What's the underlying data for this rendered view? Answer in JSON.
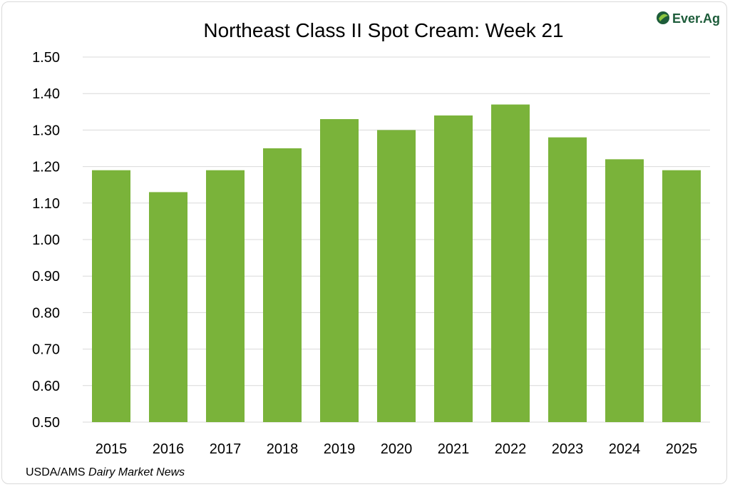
{
  "brand": {
    "logo_text": "Ever.Ag",
    "logo_icon": "ever-ag-leaf-icon"
  },
  "source": {
    "prefix": "USDA/AMS ",
    "publication": "Dairy Market News"
  },
  "colors": {
    "bar": "#7ab33a",
    "grid": "#d9d9d9",
    "brand": "#1d5c3a"
  },
  "chart_data": {
    "type": "bar",
    "title": "Northeast Class II Spot Cream: Week 21",
    "xlabel": "",
    "ylabel": "",
    "categories": [
      "2015",
      "2016",
      "2017",
      "2018",
      "2019",
      "2020",
      "2021",
      "2022",
      "2023",
      "2024",
      "2025"
    ],
    "values": [
      1.19,
      1.13,
      1.19,
      1.25,
      1.33,
      1.3,
      1.34,
      1.37,
      1.28,
      1.22,
      1.19
    ],
    "ylim": [
      0.5,
      1.5
    ],
    "yticks": [
      "0.50",
      "0.60",
      "0.70",
      "0.80",
      "0.90",
      "1.00",
      "1.10",
      "1.20",
      "1.30",
      "1.40",
      "1.50"
    ],
    "grid": true,
    "legend": "none"
  }
}
